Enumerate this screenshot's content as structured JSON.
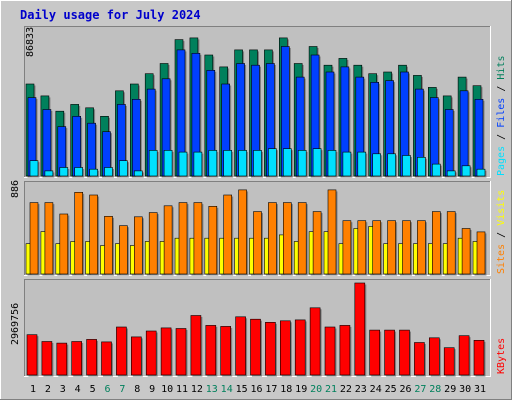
{
  "title": "Daily usage for July 2024",
  "colors": {
    "title": "#0000cc",
    "hits": "#00805c",
    "files": "#0040ff",
    "pages": "#00e0ff",
    "visits": "#ffff00",
    "sites": "#ff8000",
    "kbytes": "#ff0000",
    "panel_bg": "#c0c0c0",
    "frame_bg": "#c8c8c8",
    "weekday_label": "#000000",
    "weekend_label": "#00805c"
  },
  "panels": {
    "top": {
      "max_label": "86833",
      "legend": {
        "pages": "Pages",
        "sep1": "/",
        "files": "Files",
        "sep2": "/",
        "hits": "Hits"
      }
    },
    "middle": {
      "max_label": "886",
      "legend": {
        "sites": "Sites",
        "sep": "/",
        "visits": "Visits"
      }
    },
    "bottom": {
      "max_label": "2969756",
      "legend": {
        "kbytes": "KBytes"
      }
    }
  },
  "chart_data": {
    "type": "bar",
    "title": "Daily usage for July 2024",
    "categories": [
      "1",
      "2",
      "3",
      "4",
      "5",
      "6",
      "7",
      "8",
      "9",
      "10",
      "11",
      "12",
      "13",
      "14",
      "15",
      "16",
      "17",
      "18",
      "19",
      "20",
      "21",
      "22",
      "23",
      "24",
      "25",
      "26",
      "27",
      "28",
      "29",
      "30",
      "31"
    ],
    "weekend_days": [
      "6",
      "7",
      "13",
      "14",
      "20",
      "21",
      "27",
      "28"
    ],
    "panels": [
      {
        "name": "hits-files-pages",
        "y_max": 86833,
        "y_max_label": "86833",
        "series": [
          {
            "name": "Hits",
            "values": [
              54000,
              47000,
              38000,
              42000,
              40000,
              35000,
              50000,
              54000,
              60000,
              66000,
              80000,
              81000,
              71000,
              64000,
              74000,
              74000,
              74000,
              81000,
              66000,
              76000,
              65000,
              69000,
              65000,
              60000,
              61000,
              65000,
              59000,
              52000,
              47000,
              58000,
              53000
            ]
          },
          {
            "name": "Files",
            "values": [
              46000,
              39000,
              29000,
              35000,
              31000,
              26000,
              42000,
              45000,
              51000,
              57000,
              74000,
              72000,
              62000,
              54000,
              66000,
              65000,
              66000,
              76000,
              58000,
              71000,
              61000,
              64000,
              58000,
              55000,
              56000,
              61000,
              51000,
              46000,
              39000,
              50000,
              45000
            ]
          },
          {
            "name": "Pages",
            "values": [
              9000,
              3000,
              5000,
              5000,
              4000,
              5000,
              9000,
              3000,
              15000,
              15000,
              14000,
              14000,
              15000,
              15000,
              15000,
              15000,
              16000,
              16000,
              15000,
              16000,
              15000,
              14000,
              14000,
              13000,
              13000,
              12000,
              11000,
              7000,
              3000,
              6000,
              4000
            ]
          }
        ]
      },
      {
        "name": "sites-visits",
        "y_max": 886,
        "y_max_label": "886",
        "series": [
          {
            "name": "Sites",
            "values": [
              703,
              703,
              591,
              804,
              778,
              568,
              475,
              563,
              604,
              671,
              703,
              703,
              666,
              778,
              828,
              614,
              703,
              703,
              703,
              614,
              828,
              525,
              525,
              525,
              525,
              525,
              525,
              614,
              614,
              448,
              414
            ]
          },
          {
            "name": "Visits",
            "values": [
              298,
              417,
              298,
              320,
              320,
              280,
              298,
              280,
              320,
              320,
              352,
              352,
              352,
              352,
              352,
              352,
              352,
              385,
              320,
              416,
              416,
              298,
              448,
              469,
              298,
              298,
              298,
              298,
              298,
              352,
              320
            ]
          }
        ]
      },
      {
        "name": "kbytes",
        "y_max": 2969756,
        "y_max_label": "2969756",
        "series": [
          {
            "name": "KBytes",
            "values": [
              1300000,
              1080000,
              1030000,
              1080000,
              1150000,
              1070000,
              1550000,
              1230000,
              1420000,
              1520000,
              1500000,
              1920000,
              1600000,
              1570000,
              1880000,
              1800000,
              1700000,
              1750000,
              1780000,
              2170000,
              1550000,
              1600000,
              2969756,
              1450000,
              1450000,
              1450000,
              1050000,
              1200000,
              880000,
              1270000,
              1120000
            ]
          }
        ]
      }
    ]
  }
}
